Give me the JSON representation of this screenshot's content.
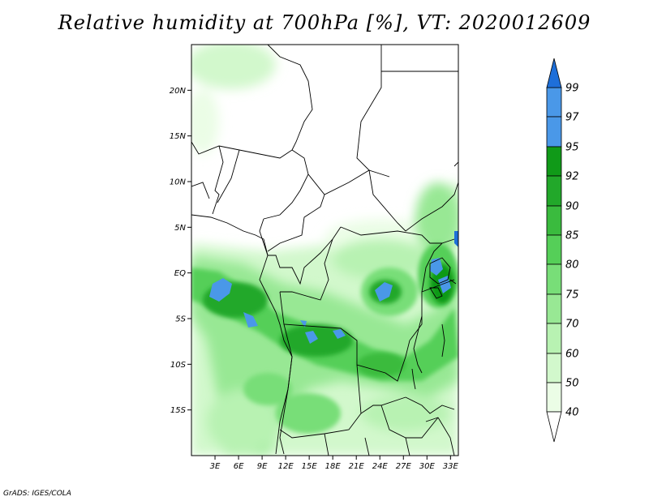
{
  "title": "Relative humidity at 700hPa [%], VT: 2020012609",
  "credit": "GrADS: IGES/COLA",
  "map": {
    "projection": "latlon",
    "lon_range": [
      0,
      34
    ],
    "lat_range": [
      -20,
      25
    ],
    "lat_ticks": [
      {
        "value": 20,
        "label": "20N"
      },
      {
        "value": 15,
        "label": "15N"
      },
      {
        "value": 10,
        "label": "10N"
      },
      {
        "value": 5,
        "label": "5N"
      },
      {
        "value": 0,
        "label": "EQ"
      },
      {
        "value": -5,
        "label": "5S"
      },
      {
        "value": -10,
        "label": "10S"
      },
      {
        "value": -15,
        "label": "15S"
      }
    ],
    "lon_ticks": [
      {
        "value": 3,
        "label": "3E"
      },
      {
        "value": 6,
        "label": "6E"
      },
      {
        "value": 9,
        "label": "9E"
      },
      {
        "value": 12,
        "label": "12E"
      },
      {
        "value": 15,
        "label": "15E"
      },
      {
        "value": 18,
        "label": "18E"
      },
      {
        "value": 21,
        "label": "21E"
      },
      {
        "value": 24,
        "label": "24E"
      },
      {
        "value": 27,
        "label": "27E"
      },
      {
        "value": 30,
        "label": "30E"
      },
      {
        "value": 33,
        "label": "33E"
      }
    ]
  },
  "colorbar": {
    "levels": [
      "99",
      "97",
      "95",
      "92",
      "90",
      "85",
      "80",
      "75",
      "70",
      "60",
      "50",
      "40"
    ],
    "colors": {
      "above_97": "#1e6fd9",
      "95_97": "#4a98e8",
      "92_95": "#109a18",
      "90_92": "#22a82a",
      "85_90": "#3abb3e",
      "80_85": "#55cf58",
      "75_80": "#78de78",
      "70_75": "#98e894",
      "60_70": "#b8f2b2",
      "50_60": "#d2f8cc",
      "40_50": "#ebfde6",
      "below_40": "#ffffff"
    }
  },
  "colors": {
    "border": "#000000",
    "background": "#ffffff"
  }
}
